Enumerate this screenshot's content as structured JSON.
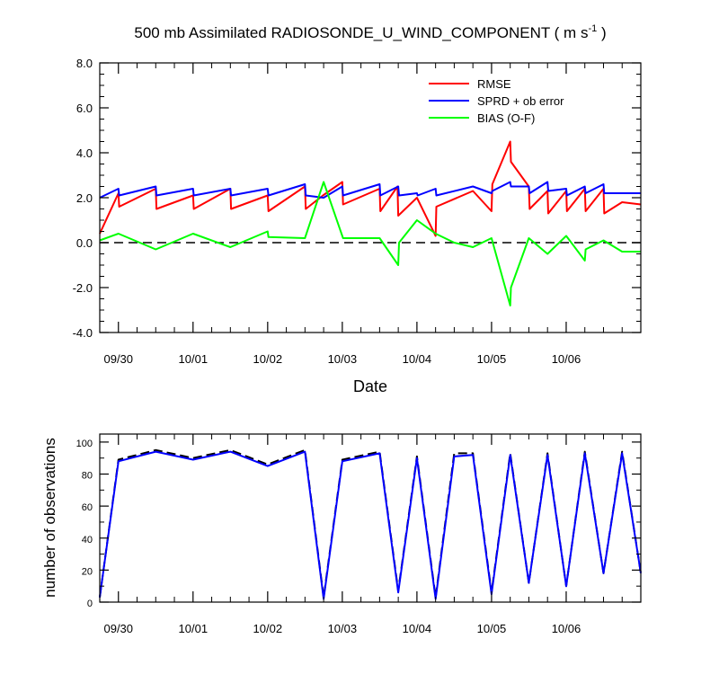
{
  "chart_data": [
    {
      "type": "line",
      "title_main": "500 mb Assimilated RADIOSONDE_U_WIND_COMPONENT ( m s",
      "title_sup": "-1",
      "title_end": " )",
      "xlabel": "Date",
      "ylabel": "",
      "xlim": [
        0,
        7.25
      ],
      "ylim": [
        -4,
        8
      ],
      "yticks": [
        -4,
        -2,
        0,
        2,
        4,
        6,
        8
      ],
      "ytick_labels": [
        "-4.0",
        "-2.0",
        "0.0",
        "2.0",
        "4.0",
        "6.0",
        "8.0"
      ],
      "xticks": [
        0.25,
        1.25,
        2.25,
        3.25,
        4.25,
        5.25,
        6.25
      ],
      "xtick_labels": [
        "09/30",
        "10/01",
        "10/02",
        "10/03",
        "10/04",
        "10/05",
        "10/06"
      ],
      "zero_line": "dashed",
      "legend_position": "top-right",
      "series": [
        {
          "name": "RMSE",
          "color": "#ff0000",
          "x": [
            0,
            0.25,
            0.26,
            0.75,
            0.76,
            1.25,
            1.26,
            1.75,
            1.76,
            2.25,
            2.26,
            2.75,
            2.76,
            2.99,
            3.25,
            3.26,
            3.75,
            3.76,
            3.99,
            4.0,
            4.25,
            4.5,
            4.51,
            5.0,
            5.25,
            5.26,
            5.5,
            5.51,
            5.75,
            5.76,
            6.0,
            6.01,
            6.25,
            6.26,
            6.5,
            6.51,
            6.75,
            6.76,
            7.0,
            7.25
          ],
          "y": [
            0.4,
            2.2,
            1.6,
            2.4,
            1.5,
            2.1,
            1.5,
            2.4,
            1.5,
            2.1,
            1.4,
            2.5,
            1.5,
            2.1,
            2.7,
            1.7,
            2.4,
            1.4,
            2.5,
            1.2,
            2.0,
            0.3,
            1.6,
            2.3,
            1.4,
            2.6,
            4.5,
            3.6,
            2.5,
            1.5,
            2.3,
            1.3,
            2.3,
            1.4,
            2.4,
            1.4,
            2.4,
            1.3,
            1.8,
            1.7
          ]
        },
        {
          "name": "SPRD + ob error",
          "color": "#0000ff",
          "x": [
            0,
            0.25,
            0.26,
            0.75,
            0.76,
            1.25,
            1.26,
            1.75,
            1.76,
            2.25,
            2.26,
            2.75,
            2.76,
            3.0,
            3.25,
            3.26,
            3.75,
            3.76,
            4.0,
            4.01,
            4.25,
            4.26,
            4.5,
            4.51,
            5.0,
            5.25,
            5.26,
            5.5,
            5.51,
            5.75,
            5.76,
            6.0,
            6.01,
            6.25,
            6.26,
            6.5,
            6.51,
            6.75,
            6.76,
            7.0,
            7.25
          ],
          "y": [
            2.0,
            2.4,
            2.1,
            2.5,
            2.1,
            2.4,
            2.1,
            2.4,
            2.1,
            2.4,
            2.1,
            2.6,
            2.1,
            2.0,
            2.5,
            2.1,
            2.6,
            2.1,
            2.5,
            2.1,
            2.2,
            2.1,
            2.4,
            2.1,
            2.5,
            2.2,
            2.3,
            2.7,
            2.5,
            2.5,
            2.2,
            2.7,
            2.3,
            2.4,
            2.1,
            2.5,
            2.2,
            2.6,
            2.2,
            2.2,
            2.2
          ]
        },
        {
          "name": "BIAS (O-F)",
          "color": "#00ff00",
          "x": [
            0,
            0.25,
            0.75,
            1.25,
            1.75,
            2.25,
            2.26,
            2.75,
            3.0,
            3.26,
            3.75,
            4.0,
            4.01,
            4.25,
            4.5,
            4.75,
            5.0,
            5.25,
            5.5,
            5.51,
            5.75,
            6.0,
            6.25,
            6.5,
            6.51,
            6.75,
            7.0,
            7.25
          ],
          "y": [
            0.1,
            0.4,
            -0.3,
            0.4,
            -0.2,
            0.5,
            0.25,
            0.2,
            2.7,
            0.2,
            0.2,
            -1.0,
            0.0,
            1.0,
            0.4,
            0.0,
            -0.2,
            0.2,
            -2.8,
            -2.0,
            0.2,
            -0.5,
            0.3,
            -0.8,
            -0.3,
            0.1,
            -0.4,
            -0.4
          ]
        }
      ]
    },
    {
      "type": "line",
      "title": "",
      "xlabel": "",
      "ylabel": "number of observations",
      "xlim": [
        0,
        7.25
      ],
      "ylim": [
        0,
        105
      ],
      "yticks": [
        0,
        20,
        40,
        60,
        80,
        100
      ],
      "ytick_labels": [
        "0",
        "20",
        "40",
        "60",
        "80",
        "100"
      ],
      "xticks": [
        0.25,
        1.25,
        2.25,
        3.25,
        4.25,
        5.25,
        6.25
      ],
      "xtick_labels": [
        "09/30",
        "10/01",
        "10/02",
        "10/03",
        "10/04",
        "10/05",
        "10/06"
      ],
      "series": [
        {
          "color": "#000000",
          "style": "dashed",
          "x": [
            0,
            0.25,
            0.75,
            1.25,
            1.75,
            2.25,
            2.75,
            3.0,
            3.25,
            3.75,
            4.0,
            4.25,
            4.5,
            4.75,
            5.0,
            5.25,
            5.5,
            5.75,
            6.0,
            6.25,
            6.5,
            6.75,
            7.0,
            7.25
          ],
          "y": [
            3,
            89,
            95,
            90,
            95,
            86,
            95,
            3,
            89,
            94,
            7,
            91,
            3,
            93,
            93,
            6,
            93,
            12,
            93,
            10,
            94,
            18,
            94,
            18
          ]
        },
        {
          "color": "#0000ff",
          "style": "solid",
          "x": [
            0,
            0.25,
            0.75,
            1.25,
            1.75,
            2.25,
            2.75,
            3.0,
            3.25,
            3.75,
            4.0,
            4.25,
            4.5,
            4.75,
            5.0,
            5.25,
            5.5,
            5.75,
            6.0,
            6.25,
            6.5,
            6.75,
            7.0,
            7.25
          ],
          "y": [
            3,
            88,
            94,
            89,
            94,
            85,
            94,
            2,
            88,
            93,
            6,
            90,
            2,
            91,
            92,
            5,
            92,
            12,
            92,
            10,
            93,
            18,
            93,
            18
          ]
        }
      ]
    }
  ]
}
